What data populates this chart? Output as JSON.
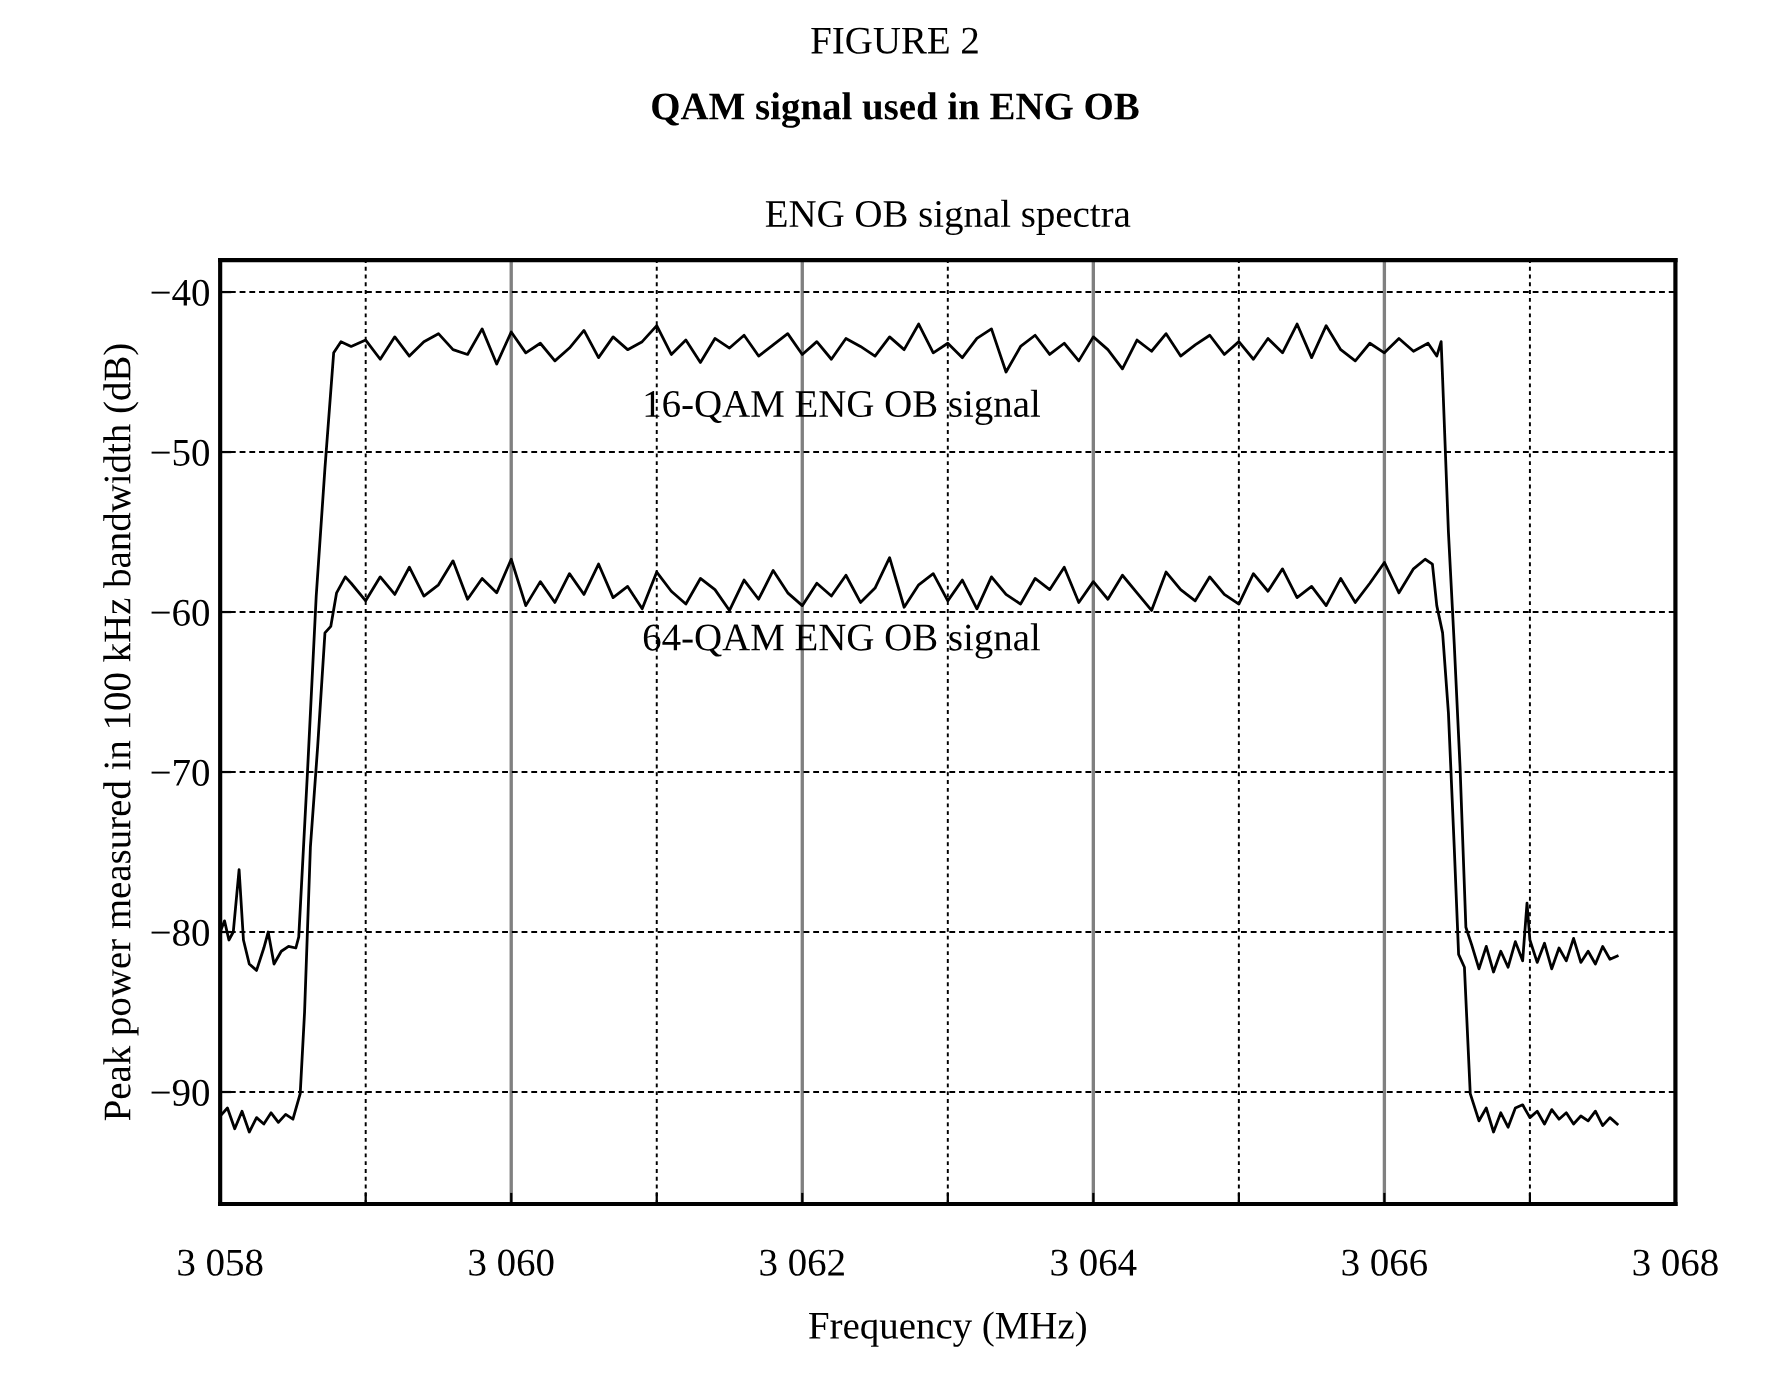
{
  "chart_data": {
    "type": "line",
    "title": "QAM signal used in ENG OB",
    "subtitle": "ENG OB signal spectra",
    "annotations": [
      "FIGURE 2"
    ],
    "xlabel": "Frequency (MHz)",
    "ylabel": "Peak power measured in 100 kHz bandwidth (dB)",
    "xlim": [
      3058,
      3068
    ],
    "ylim": [
      -97,
      -38
    ],
    "xticks": [
      {
        "value": 3058,
        "label": "3 058"
      },
      {
        "value": 3059,
        "label": null
      },
      {
        "value": 3060,
        "label": "3 060"
      },
      {
        "value": 3061,
        "label": null
      },
      {
        "value": 3062,
        "label": "3 062"
      },
      {
        "value": 3063,
        "label": null
      },
      {
        "value": 3064,
        "label": "3 064"
      },
      {
        "value": 3065,
        "label": null
      },
      {
        "value": 3066,
        "label": "3 066"
      },
      {
        "value": 3067,
        "label": null
      },
      {
        "value": 3068,
        "label": "3 068"
      }
    ],
    "yticks": [
      {
        "value": -90,
        "label": "−90"
      },
      {
        "value": -80,
        "label": "−80"
      },
      {
        "value": -70,
        "label": "−70"
      },
      {
        "value": -60,
        "label": "−60"
      },
      {
        "value": -50,
        "label": "−50"
      },
      {
        "value": -40,
        "label": "−40"
      }
    ],
    "grid": true,
    "legend": false,
    "line_style": "solid",
    "marker": "none",
    "series": [
      {
        "name": "16-QAM ENG OB signal",
        "color": "#000000",
        "x": [
          3058.0,
          3058.03,
          3058.06,
          3058.09,
          3058.13,
          3058.16,
          3058.2,
          3058.25,
          3058.3,
          3058.33,
          3058.37,
          3058.42,
          3058.47,
          3058.52,
          3058.54,
          3058.6,
          3058.66,
          3058.72,
          3058.78,
          3058.83,
          3058.9,
          3059.0,
          3059.1,
          3059.2,
          3059.3,
          3059.4,
          3059.5,
          3059.6,
          3059.7,
          3059.8,
          3059.9,
          3060.0,
          3060.1,
          3060.2,
          3060.3,
          3060.4,
          3060.5,
          3060.6,
          3060.7,
          3060.8,
          3060.9,
          3061.0,
          3061.1,
          3061.2,
          3061.3,
          3061.4,
          3061.5,
          3061.6,
          3061.7,
          3061.8,
          3061.9,
          3062.0,
          3062.1,
          3062.2,
          3062.3,
          3062.4,
          3062.5,
          3062.6,
          3062.7,
          3062.8,
          3062.9,
          3063.0,
          3063.1,
          3063.2,
          3063.3,
          3063.4,
          3063.5,
          3063.6,
          3063.7,
          3063.8,
          3063.9,
          3064.0,
          3064.1,
          3064.2,
          3064.3,
          3064.4,
          3064.5,
          3064.6,
          3064.7,
          3064.8,
          3064.9,
          3065.0,
          3065.1,
          3065.2,
          3065.3,
          3065.4,
          3065.5,
          3065.6,
          3065.7,
          3065.8,
          3065.9,
          3066.0,
          3066.1,
          3066.2,
          3066.3,
          3066.36,
          3066.39,
          3066.4,
          3066.44,
          3066.48,
          3066.52,
          3066.56,
          3066.6,
          3066.65,
          3066.7,
          3066.75,
          3066.8,
          3066.85,
          3066.9,
          3066.95,
          3066.98,
          3067.0,
          3067.05,
          3067.1,
          3067.15,
          3067.2,
          3067.25,
          3067.3,
          3067.35,
          3067.4,
          3067.45,
          3067.5,
          3067.55,
          3067.6
        ],
        "values": [
          -80.0,
          -79.3,
          -80.5,
          -80.0,
          -76.1,
          -80.5,
          -82.0,
          -82.4,
          -81.0,
          -80.0,
          -82.0,
          -81.2,
          -80.9,
          -81.0,
          -80.3,
          -70.0,
          -59.0,
          -51.0,
          -43.8,
          -43.1,
          -43.4,
          -43.0,
          -44.2,
          -42.8,
          -44.0,
          -43.1,
          -42.6,
          -43.6,
          -43.9,
          -42.3,
          -44.5,
          -42.5,
          -43.8,
          -43.2,
          -44.3,
          -43.5,
          -42.4,
          -44.1,
          -42.8,
          -43.6,
          -43.1,
          -42.1,
          -43.9,
          -43.0,
          -44.4,
          -42.9,
          -43.5,
          -42.7,
          -44.0,
          -43.3,
          -42.6,
          -43.9,
          -43.1,
          -44.2,
          -42.9,
          -43.4,
          -44.0,
          -42.8,
          -43.6,
          -42.0,
          -43.8,
          -43.2,
          -44.1,
          -42.9,
          -42.3,
          -45.0,
          -43.4,
          -42.7,
          -43.9,
          -43.2,
          -44.3,
          -42.8,
          -43.6,
          -44.8,
          -43.0,
          -43.7,
          -42.6,
          -44.0,
          -43.3,
          -42.7,
          -43.9,
          -43.1,
          -44.2,
          -42.9,
          -43.8,
          -42.0,
          -44.1,
          -42.1,
          -43.6,
          -44.3,
          -43.2,
          -43.8,
          -42.9,
          -43.7,
          -43.2,
          -44.0,
          -43.1,
          -45.4,
          -55.0,
          -62.0,
          -69.7,
          -79.7,
          -80.8,
          -82.3,
          -80.9,
          -82.5,
          -81.2,
          -82.2,
          -80.6,
          -81.8,
          -78.2,
          -80.5,
          -81.9,
          -80.7,
          -82.3,
          -81.0,
          -81.8,
          -80.4,
          -81.9,
          -81.2,
          -82.0,
          -80.9,
          -81.7,
          -81.5
        ]
      },
      {
        "name": "64-QAM ENG OB signal",
        "color": "#000000",
        "x": [
          3058.0,
          3058.05,
          3058.1,
          3058.15,
          3058.2,
          3058.25,
          3058.3,
          3058.35,
          3058.4,
          3058.45,
          3058.5,
          3058.55,
          3058.58,
          3058.62,
          3058.67,
          3058.72,
          3058.76,
          3058.8,
          3058.86,
          3058.9,
          3059.0,
          3059.1,
          3059.2,
          3059.3,
          3059.4,
          3059.5,
          3059.6,
          3059.7,
          3059.8,
          3059.9,
          3060.0,
          3060.1,
          3060.2,
          3060.3,
          3060.4,
          3060.5,
          3060.6,
          3060.7,
          3060.8,
          3060.9,
          3061.0,
          3061.1,
          3061.2,
          3061.3,
          3061.4,
          3061.5,
          3061.6,
          3061.7,
          3061.8,
          3061.9,
          3062.0,
          3062.1,
          3062.2,
          3062.3,
          3062.4,
          3062.5,
          3062.6,
          3062.7,
          3062.8,
          3062.9,
          3063.0,
          3063.1,
          3063.2,
          3063.3,
          3063.4,
          3063.5,
          3063.6,
          3063.7,
          3063.8,
          3063.9,
          3064.0,
          3064.1,
          3064.2,
          3064.3,
          3064.4,
          3064.5,
          3064.6,
          3064.7,
          3064.8,
          3064.9,
          3065.0,
          3065.1,
          3065.2,
          3065.3,
          3065.4,
          3065.5,
          3065.6,
          3065.7,
          3065.8,
          3065.9,
          3066.0,
          3066.1,
          3066.2,
          3066.28,
          3066.33,
          3066.36,
          3066.4,
          3066.44,
          3066.48,
          3066.51,
          3066.55,
          3066.59,
          3066.65,
          3066.7,
          3066.75,
          3066.8,
          3066.85,
          3066.9,
          3066.95,
          3067.0,
          3067.05,
          3067.1,
          3067.15,
          3067.2,
          3067.25,
          3067.3,
          3067.35,
          3067.4,
          3067.45,
          3067.5,
          3067.55,
          3067.6
        ],
        "values": [
          -91.5,
          -91.0,
          -92.3,
          -91.2,
          -92.5,
          -91.6,
          -92.0,
          -91.3,
          -91.9,
          -91.4,
          -91.7,
          -90.1,
          -85.0,
          -74.7,
          -68.4,
          -61.3,
          -60.9,
          -58.8,
          -57.8,
          -58.2,
          -59.3,
          -57.8,
          -58.9,
          -57.2,
          -59.0,
          -58.3,
          -56.8,
          -59.2,
          -57.9,
          -58.8,
          -56.7,
          -59.6,
          -58.1,
          -59.4,
          -57.6,
          -58.9,
          -57.0,
          -59.1,
          -58.4,
          -59.8,
          -57.5,
          -58.7,
          -59.5,
          -57.9,
          -58.6,
          -59.9,
          -58.0,
          -59.2,
          -57.4,
          -58.8,
          -59.6,
          -58.2,
          -59.0,
          -57.7,
          -59.4,
          -58.5,
          -56.6,
          -59.7,
          -58.3,
          -57.6,
          -59.3,
          -58.0,
          -59.8,
          -57.8,
          -58.9,
          -59.5,
          -57.9,
          -58.6,
          -57.2,
          -59.4,
          -58.1,
          -59.2,
          -57.7,
          -58.8,
          -59.9,
          -57.5,
          -58.6,
          -59.3,
          -57.8,
          -58.9,
          -59.5,
          -57.6,
          -58.7,
          -57.3,
          -59.1,
          -58.4,
          -59.6,
          -57.9,
          -59.4,
          -58.2,
          -56.9,
          -58.8,
          -57.3,
          -56.7,
          -57.0,
          -59.6,
          -61.3,
          -66.3,
          -74.7,
          -81.4,
          -82.2,
          -90.1,
          -91.8,
          -91.0,
          -92.5,
          -91.3,
          -92.2,
          -91.0,
          -90.8,
          -91.6,
          -91.2,
          -92.0,
          -91.1,
          -91.7,
          -91.3,
          -92.0,
          -91.5,
          -91.8,
          -91.2,
          -92.1,
          -91.6,
          -92.0
        ]
      }
    ]
  }
}
